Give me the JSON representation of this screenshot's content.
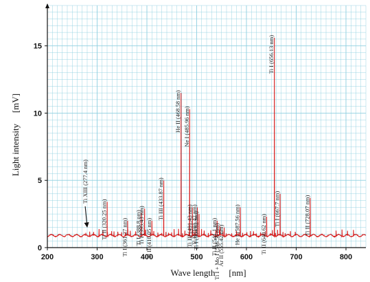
{
  "chart_data": {
    "type": "line",
    "title": "",
    "xlabel": "Wave length",
    "xunit": "[nm]",
    "ylabel": "Light intensity",
    "yunit": "[mV]",
    "xlim": [
      200,
      840
    ],
    "ylim": [
      0,
      18
    ],
    "x_ticks": [
      200,
      300,
      400,
      500,
      600,
      700,
      800
    ],
    "y_ticks": [
      0,
      5,
      10,
      15
    ],
    "grid": true,
    "baseline": 0.9,
    "line_color": "#d62020",
    "grid_color": "#8ecfe0",
    "peaks": [
      {
        "label": "Ti XIII (277.4 nm)",
        "x": 277.4,
        "y": 1.1,
        "arrow": true
      },
      {
        "label": "Ti II (320.25 nm)",
        "x": 320.25,
        "y": 3.4
      },
      {
        "label": "Ti I (361.27 nm)",
        "x": 361.27,
        "y": 2.0
      },
      {
        "label": "Ti I (388.8 nm)",
        "x": 388.8,
        "y": 2.6
      },
      {
        "label": "Ti I (395.43 nm)",
        "x": 395.43,
        "y": 2.9
      },
      {
        "label": "Ti II (410.05 nm)",
        "x": 410.05,
        "y": 2.0
      },
      {
        "label": "Ti III (433.87 nm)",
        "x": 433.87,
        "y": 5.0
      },
      {
        "label": "He II (468.58 nm)",
        "x": 468.58,
        "y": 11.5
      },
      {
        "label": "Ne I (485.96 nm)",
        "x": 485.96,
        "y": 10.3
      },
      {
        "label": "Ti III (491.43 nm)",
        "x": 491.43,
        "y": 3.0
      },
      {
        "label": "Ti II (501.42 nm)",
        "x": 501.42,
        "y": 3.0
      },
      {
        "label": "Ti I (504.82 nm)",
        "x": 504.82,
        "y": 2.5
      },
      {
        "label": "Ti II (541.1 nm)",
        "x": 541.1,
        "y": 2.0
      },
      {
        "label": "Ti I + Mo I (546.56 nm)",
        "x": 546.56,
        "y": 1.6
      },
      {
        "label": "Ar II (555.42 nm)",
        "x": 555.42,
        "y": 1.5
      },
      {
        "label": "He I (587.56 nm)",
        "x": 587.56,
        "y": 3.0
      },
      {
        "label": "Ti II (640.62 nm)",
        "x": 640.62,
        "y": 2.3
      },
      {
        "label": "Ti I (656.13 nm)",
        "x": 656.13,
        "y": 15.6
      },
      {
        "label": "Ti I (667.7 nm)",
        "x": 667.7,
        "y": 4.0
      },
      {
        "label": "Ti II (728.07 nm)",
        "x": 728.07,
        "y": 3.7
      }
    ]
  }
}
